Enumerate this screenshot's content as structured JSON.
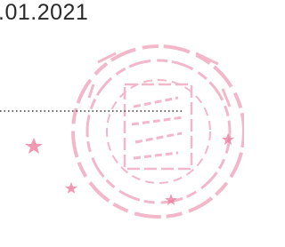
{
  "document": {
    "date": ".01.2021"
  }
}
